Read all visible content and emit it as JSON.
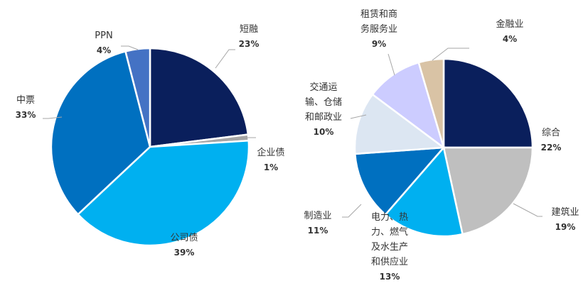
{
  "chart_data": [
    {
      "type": "pie",
      "slices": [
        {
          "label": "短融",
          "pct_text": "23%",
          "value": 23,
          "color": "#0a1f5c"
        },
        {
          "label": "企业债",
          "pct_text": "1%",
          "value": 1,
          "color": "#a6a6a6"
        },
        {
          "label": "公司债",
          "pct_text": "39%",
          "value": 39,
          "color": "#00b0f0"
        },
        {
          "label": "中票",
          "pct_text": "33%",
          "value": 33,
          "color": "#0070c0"
        },
        {
          "label": "PPN",
          "pct_text": "4%",
          "value": 4,
          "color": "#4472c4"
        }
      ]
    },
    {
      "type": "pie",
      "slices": [
        {
          "label": "综合",
          "pct_text": "22%",
          "value": 22,
          "color": "#0a1f5c"
        },
        {
          "label": "建筑业",
          "pct_text": "19%",
          "value": 19,
          "color": "#bfbfbf"
        },
        {
          "label": "电力、热力、燃气及水生产和供应业",
          "pct_text": "13%",
          "value": 13,
          "color": "#00b0f0"
        },
        {
          "label": "制造业",
          "pct_text": "11%",
          "value": 11,
          "color": "#0070c0"
        },
        {
          "label": "交通运输、仓储和邮政业",
          "pct_text": "10%",
          "value": 10,
          "color": "#dce6f2"
        },
        {
          "label": "租赁和商务服务业",
          "pct_text": "9%",
          "value": 9,
          "color": "#ccccff"
        },
        {
          "label": "金融业",
          "pct_text": "4%",
          "value": 4,
          "color": "#d9c3a5"
        }
      ]
    }
  ]
}
